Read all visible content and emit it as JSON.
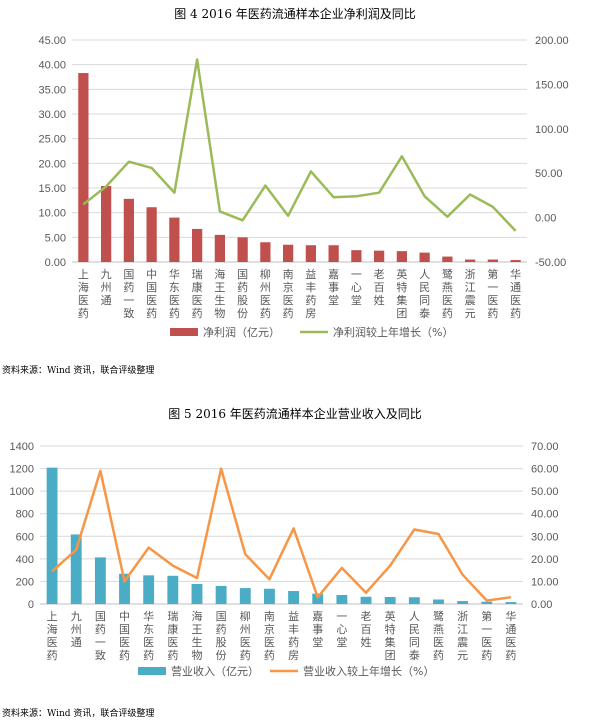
{
  "colors": {
    "bar1": "#C0504D",
    "line1": "#9BBB59",
    "bar2": "#4BACC6",
    "line2": "#F79646",
    "grid": "#D9D9D9",
    "text": "#595959"
  },
  "chart1": {
    "title": "图 4  2016 年医药流通样本企业净利润及同比",
    "source": "资料来源：Wind 资讯，联合评级整理"
  },
  "chart2": {
    "title": "图 5  2016 年医药流通样本企业营业收入及同比",
    "source": "资料来源：Wind 资讯，联合评级整理"
  },
  "chart_data": [
    {
      "type": "bar",
      "title": "图 4  2016 年医药流通样本企业净利润及同比",
      "categories": [
        "上海医药",
        "九州通",
        "国药一致",
        "中国医药",
        "华东医药",
        "瑞康医药",
        "海王生物",
        "国药股份",
        "柳州医药",
        "南京医药",
        "益丰药房",
        "嘉事堂",
        "一心堂",
        "老百姓",
        "英特集团",
        "人民同泰",
        "鹭燕医药",
        "浙江震元",
        "第一医药",
        "华通医药"
      ],
      "series": [
        {
          "name": "净利润（亿元）",
          "type": "bar",
          "axis": "left",
          "values": [
            38.3,
            15.4,
            12.8,
            11.1,
            9.0,
            6.7,
            5.5,
            5.0,
            4.0,
            3.5,
            3.4,
            3.4,
            2.4,
            2.3,
            2.2,
            1.9,
            1.1,
            0.5,
            0.5,
            0.4
          ]
        },
        {
          "name": "净利润较上年增长（%）",
          "type": "line",
          "axis": "right",
          "values": [
            15,
            35,
            63,
            56,
            28,
            178,
            7,
            -3,
            36,
            2,
            52,
            23,
            24,
            28,
            69,
            24,
            1,
            26,
            12,
            -15
          ]
        }
      ],
      "ylim_left": [
        0,
        45
      ],
      "yticks_left": [
        "0.00",
        "5.00",
        "10.00",
        "15.00",
        "20.00",
        "25.00",
        "30.00",
        "35.00",
        "40.00",
        "45.00"
      ],
      "ylim_right": [
        -50,
        200
      ],
      "yticks_right": [
        "-50.00",
        "0.00",
        "50.00",
        "100.00",
        "150.00",
        "200.00"
      ],
      "grid": true,
      "legend": "bottom"
    },
    {
      "type": "bar",
      "title": "图 5  2016 年医药流通样本企业营业收入及同比",
      "categories": [
        "上海医药",
        "九州通",
        "国药一致",
        "中国医药",
        "华东医药",
        "瑞康医药",
        "海王生物",
        "国药股份",
        "柳州医药",
        "南京医药",
        "益丰药房",
        "嘉事堂",
        "一心堂",
        "老百姓",
        "英特集团",
        "人民同泰",
        "鹭燕医药",
        "浙江震元",
        "第一医药",
        "华通医药"
      ],
      "series": [
        {
          "name": "营业收入（亿元）",
          "type": "bar",
          "axis": "left",
          "values": [
            1208,
            616,
            413,
            268,
            254,
            250,
            177,
            160,
            141,
            135,
            115,
            92,
            80,
            64,
            62,
            60,
            40,
            26,
            20,
            17
          ]
        },
        {
          "name": "营业收入较上年增长（%）",
          "type": "line",
          "axis": "right",
          "values": [
            14.5,
            24,
            59,
            10,
            25,
            17,
            11.5,
            60,
            22,
            11,
            33.5,
            3,
            16,
            5,
            17,
            33,
            31,
            13,
            1.5,
            3
          ]
        }
      ],
      "ylim_left": [
        0,
        1400
      ],
      "yticks_left": [
        "0",
        "200",
        "400",
        "600",
        "800",
        "1000",
        "1200",
        "1400"
      ],
      "ylim_right": [
        0,
        70
      ],
      "yticks_right": [
        "0.00",
        "10.00",
        "20.00",
        "30.00",
        "40.00",
        "50.00",
        "60.00",
        "70.00"
      ],
      "grid": true,
      "legend": "bottom"
    }
  ]
}
